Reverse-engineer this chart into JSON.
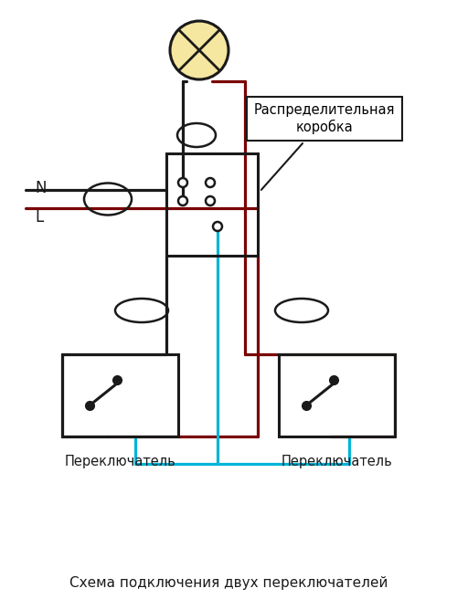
{
  "title": "Схема подключения двух переключателей",
  "label_box": "Распределительная\nкоробка",
  "label_N": "N",
  "label_L": "L",
  "label_switch1": "Переключатель",
  "label_switch2": "Переключатель",
  "bg_color": "#ffffff",
  "wire_black": "#1a1a1a",
  "wire_red": "#7a0000",
  "wire_blue": "#00b4d8",
  "bulb_fill": "#f5e6a0",
  "lw": 2.3
}
